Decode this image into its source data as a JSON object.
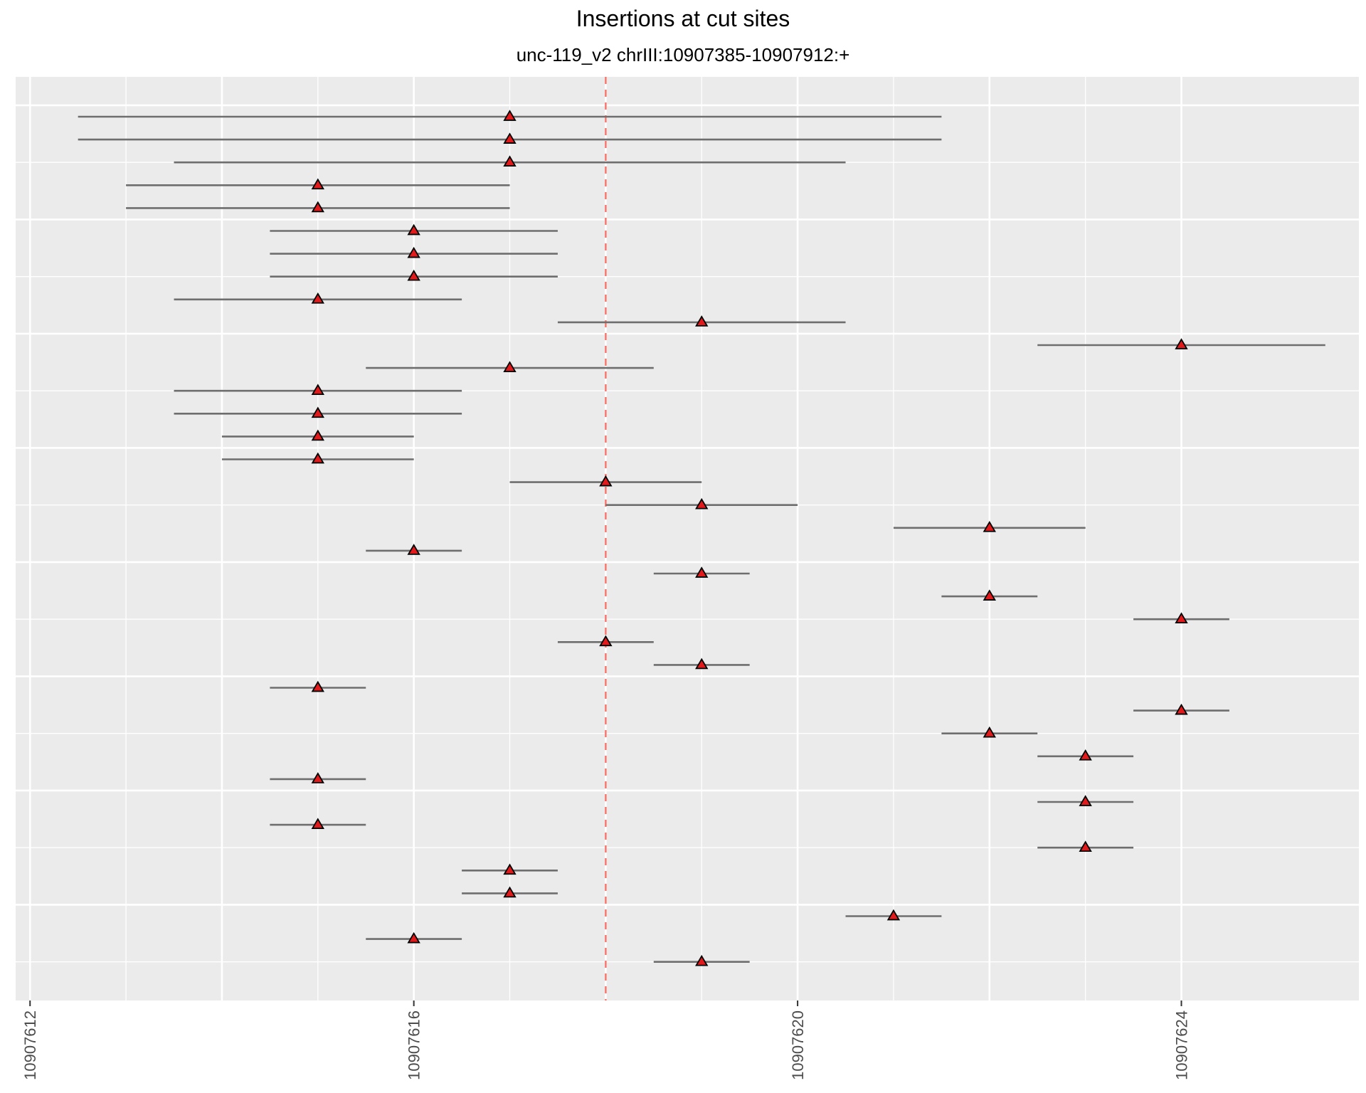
{
  "chart_data": {
    "type": "scatter",
    "title": "Insertions at cut sites",
    "subtitle": "unc-119_v2 chrIII:10907385-10907912:+",
    "xlabel": "",
    "ylabel": "",
    "xlim": [
      10907611.85,
      10907625.85
    ],
    "x_ticks": [
      "10907612",
      "10907616",
      "10907620",
      "10907624"
    ],
    "x_tick_values": [
      10907612,
      10907616,
      10907620,
      10907624
    ],
    "cut_site": 10907618,
    "grid": true,
    "legend": "none",
    "colors": {
      "panel": "#ebebeb",
      "grid": "#ffffff",
      "segment": "#6e6e6e",
      "marker_fill": "#e31a1c",
      "marker_stroke": "#000000",
      "cut_line": "#f8766d"
    },
    "segments": [
      {
        "start": 10907612.5,
        "end": 10907621.5,
        "position": 10907617
      },
      {
        "start": 10907612.5,
        "end": 10907621.5,
        "position": 10907617
      },
      {
        "start": 10907613.5,
        "end": 10907620.5,
        "position": 10907617
      },
      {
        "start": 10907613,
        "end": 10907617,
        "position": 10907615
      },
      {
        "start": 10907613,
        "end": 10907617,
        "position": 10907615
      },
      {
        "start": 10907614.5,
        "end": 10907617.5,
        "position": 10907616
      },
      {
        "start": 10907614.5,
        "end": 10907617.5,
        "position": 10907616
      },
      {
        "start": 10907614.5,
        "end": 10907617.5,
        "position": 10907616
      },
      {
        "start": 10907613.5,
        "end": 10907616.5,
        "position": 10907615
      },
      {
        "start": 10907617.5,
        "end": 10907620.5,
        "position": 10907619
      },
      {
        "start": 10907622.5,
        "end": 10907625.5,
        "position": 10907624
      },
      {
        "start": 10907615.5,
        "end": 10907618.5,
        "position": 10907617
      },
      {
        "start": 10907613.5,
        "end": 10907616.5,
        "position": 10907615
      },
      {
        "start": 10907613.5,
        "end": 10907616.5,
        "position": 10907615
      },
      {
        "start": 10907614,
        "end": 10907616,
        "position": 10907615
      },
      {
        "start": 10907614,
        "end": 10907616,
        "position": 10907615
      },
      {
        "start": 10907617,
        "end": 10907619,
        "position": 10907618
      },
      {
        "start": 10907618,
        "end": 10907620,
        "position": 10907619
      },
      {
        "start": 10907621,
        "end": 10907623,
        "position": 10907622
      },
      {
        "start": 10907615.5,
        "end": 10907616.5,
        "position": 10907616
      },
      {
        "start": 10907618.5,
        "end": 10907619.5,
        "position": 10907619
      },
      {
        "start": 10907621.5,
        "end": 10907622.5,
        "position": 10907622
      },
      {
        "start": 10907623.5,
        "end": 10907624.5,
        "position": 10907624
      },
      {
        "start": 10907617.5,
        "end": 10907618.5,
        "position": 10907618
      },
      {
        "start": 10907618.5,
        "end": 10907619.5,
        "position": 10907619
      },
      {
        "start": 10907614.5,
        "end": 10907615.5,
        "position": 10907615
      },
      {
        "start": 10907623.5,
        "end": 10907624.5,
        "position": 10907624
      },
      {
        "start": 10907621.5,
        "end": 10907622.5,
        "position": 10907622
      },
      {
        "start": 10907622.5,
        "end": 10907623.5,
        "position": 10907623
      },
      {
        "start": 10907614.5,
        "end": 10907615.5,
        "position": 10907615
      },
      {
        "start": 10907622.5,
        "end": 10907623.5,
        "position": 10907623
      },
      {
        "start": 10907614.5,
        "end": 10907615.5,
        "position": 10907615
      },
      {
        "start": 10907622.5,
        "end": 10907623.5,
        "position": 10907623
      },
      {
        "start": 10907616.5,
        "end": 10907617.5,
        "position": 10907617
      },
      {
        "start": 10907616.5,
        "end": 10907617.5,
        "position": 10907617
      },
      {
        "start": 10907620.5,
        "end": 10907621.5,
        "position": 10907621
      },
      {
        "start": 10907615.5,
        "end": 10907616.5,
        "position": 10907616
      },
      {
        "start": 10907618.5,
        "end": 10907619.5,
        "position": 10907619
      }
    ]
  }
}
